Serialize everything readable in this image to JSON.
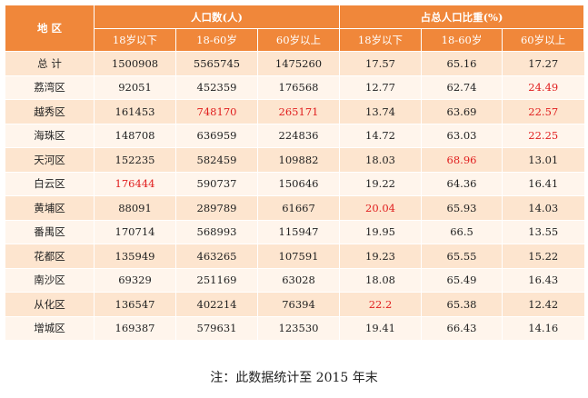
{
  "header": {
    "region_label": "地  区",
    "population_group": "人口数(人)",
    "ratio_group": "占总人口比重(%)",
    "sub": [
      "18岁以下",
      "18-60岁",
      "60岁以上",
      "18岁以下",
      "18-60岁",
      "60岁以上"
    ]
  },
  "rows": [
    {
      "region": "总  计",
      "cells": [
        "1500908",
        "5565745",
        "1475260",
        "17.57",
        "65.16",
        "17.27"
      ],
      "red": []
    },
    {
      "region": "荔湾区",
      "cells": [
        "92051",
        "452359",
        "176568",
        "12.77",
        "62.74",
        "24.49"
      ],
      "red": [
        5
      ]
    },
    {
      "region": "越秀区",
      "cells": [
        "161453",
        "748170",
        "265171",
        "13.74",
        "63.69",
        "22.57"
      ],
      "red": [
        1,
        2,
        5
      ]
    },
    {
      "region": "海珠区",
      "cells": [
        "148708",
        "636959",
        "224836",
        "14.72",
        "63.03",
        "22.25"
      ],
      "red": [
        5
      ]
    },
    {
      "region": "天河区",
      "cells": [
        "152235",
        "582459",
        "109882",
        "18.03",
        "68.96",
        "13.01"
      ],
      "red": [
        4
      ]
    },
    {
      "region": "白云区",
      "cells": [
        "176444",
        "590737",
        "150646",
        "19.22",
        "64.36",
        "16.41"
      ],
      "red": [
        0
      ]
    },
    {
      "region": "黄埔区",
      "cells": [
        "88091",
        "289789",
        "61667",
        "20.04",
        "65.93",
        "14.03"
      ],
      "red": [
        3
      ]
    },
    {
      "region": "番禺区",
      "cells": [
        "170714",
        "568993",
        "115947",
        "19.95",
        "66.5",
        "13.55"
      ],
      "red": []
    },
    {
      "region": "花都区",
      "cells": [
        "135949",
        "463265",
        "107591",
        "19.23",
        "65.55",
        "15.22"
      ],
      "red": []
    },
    {
      "region": "南沙区",
      "cells": [
        "69329",
        "251169",
        "63028",
        "18.08",
        "65.49",
        "16.43"
      ],
      "red": []
    },
    {
      "region": "从化区",
      "cells": [
        "136547",
        "402214",
        "76394",
        "22.2",
        "65.38",
        "12.42"
      ],
      "red": [
        3
      ]
    },
    {
      "region": "增城区",
      "cells": [
        "169387",
        "579631",
        "123530",
        "19.41",
        "66.43",
        "14.16"
      ],
      "red": []
    }
  ],
  "note": "注：此数据统计至 2015 年末",
  "colors": {
    "header_bg": "#f0873a",
    "row_odd": "#fde5cf",
    "row_even": "#fff5ec",
    "highlight": "#e01e1e"
  }
}
